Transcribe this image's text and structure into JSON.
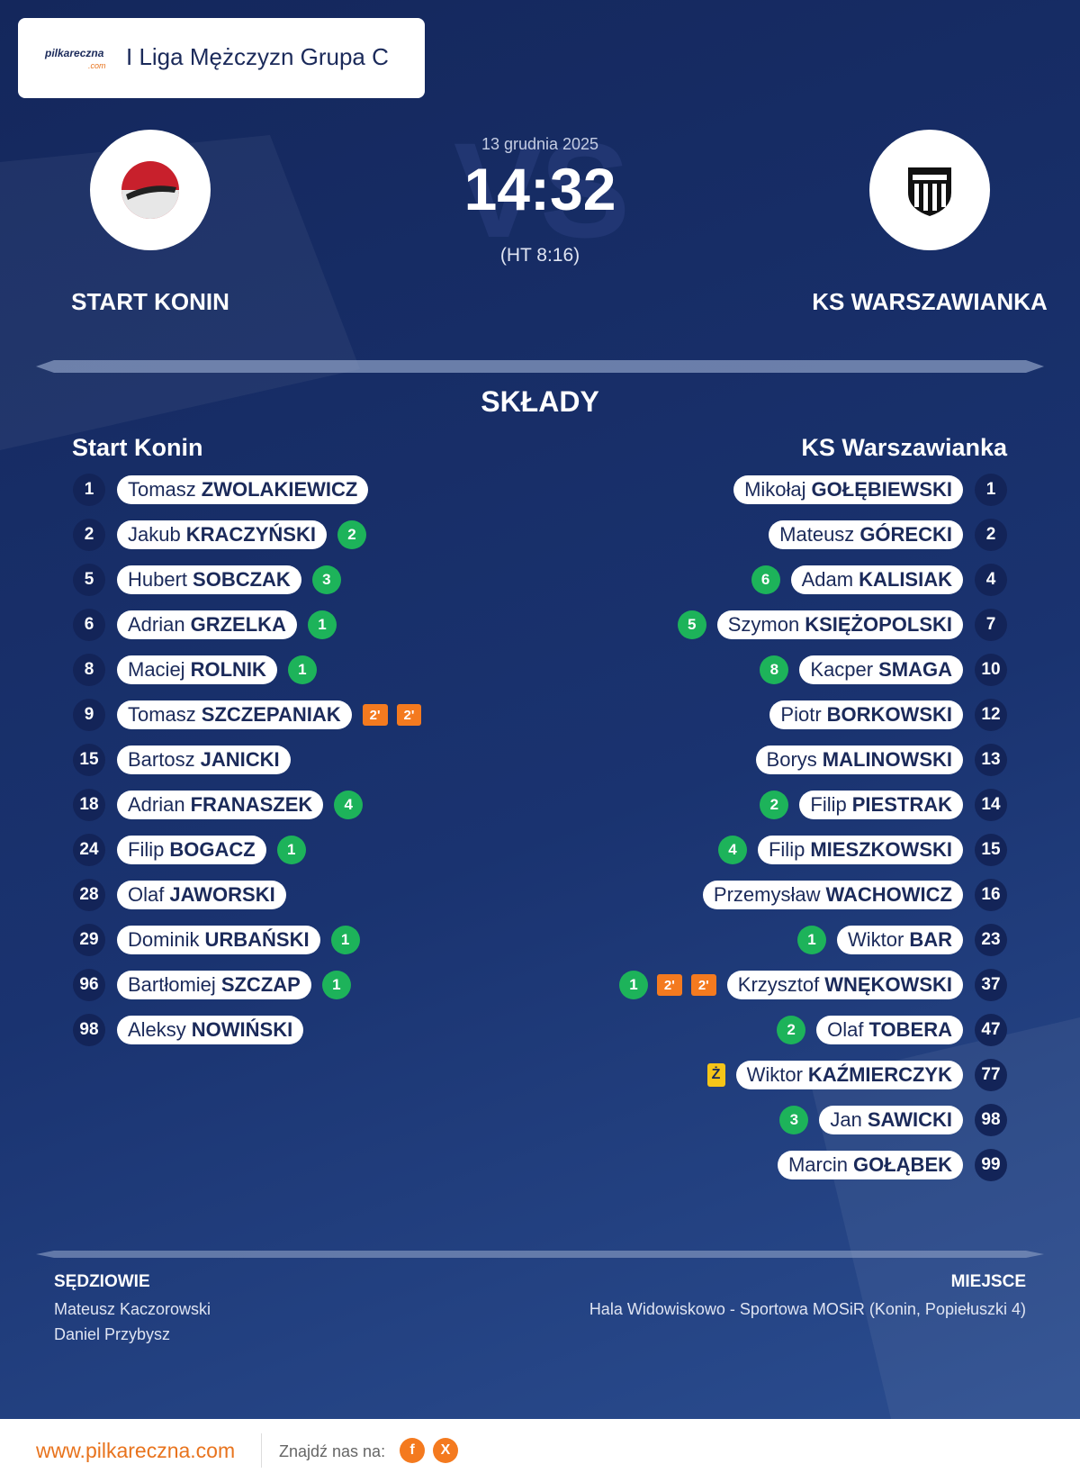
{
  "header": {
    "logo": "pilkareczna",
    "logo_suffix": ".com",
    "league": "I Liga Mężczyzn Grupa C"
  },
  "match": {
    "date": "13 grudnia 2025",
    "watermark": "VS",
    "score": "14:32",
    "halftime": "(HT 8:16)"
  },
  "teams": {
    "home": "START KONIN",
    "away": "KS WARSZAWIANKA"
  },
  "lineups": {
    "title": "SKŁADY",
    "home": {
      "name": "Start Konin",
      "players": [
        {
          "number": 1,
          "first": "Tomasz",
          "last": "ZWOLAKIEWICZ"
        },
        {
          "number": 2,
          "first": "Jakub",
          "last": "KRACZYŃSKI",
          "goals": 2
        },
        {
          "number": 5,
          "first": "Hubert",
          "last": "SOBCZAK",
          "goals": 3
        },
        {
          "number": 6,
          "first": "Adrian",
          "last": "GRZELKA",
          "goals": 1
        },
        {
          "number": 8,
          "first": "Maciej",
          "last": "ROLNIK",
          "goals": 1
        },
        {
          "number": 9,
          "first": "Tomasz",
          "last": "SZCZEPANIAK",
          "events": [
            "2'",
            "2'"
          ]
        },
        {
          "number": 15,
          "first": "Bartosz",
          "last": "JANICKI"
        },
        {
          "number": 18,
          "first": "Adrian",
          "last": "FRANASZEK",
          "goals": 4
        },
        {
          "number": 24,
          "first": "Filip",
          "last": "BOGACZ",
          "goals": 1
        },
        {
          "number": 28,
          "first": "Olaf",
          "last": "JAWORSKI"
        },
        {
          "number": 29,
          "first": "Dominik",
          "last": "URBAŃSKI",
          "goals": 1
        },
        {
          "number": 96,
          "first": "Bartłomiej",
          "last": "SZCZAP",
          "goals": 1
        },
        {
          "number": 98,
          "first": "Aleksy",
          "last": "NOWIŃSKI"
        }
      ]
    },
    "away": {
      "name": "KS Warszawianka",
      "players": [
        {
          "number": 1,
          "first": "Mikołaj",
          "last": "GOŁĘBIEWSKI"
        },
        {
          "number": 2,
          "first": "Mateusz",
          "last": "GÓRECKI"
        },
        {
          "number": 4,
          "first": "Adam",
          "last": "KALISIAK",
          "goals": 6
        },
        {
          "number": 7,
          "first": "Szymon",
          "last": "KSIĘŻOPOLSKI",
          "goals": 5
        },
        {
          "number": 10,
          "first": "Kacper",
          "last": "SMAGA",
          "goals": 8
        },
        {
          "number": 12,
          "first": "Piotr",
          "last": "BORKOWSKI"
        },
        {
          "number": 13,
          "first": "Borys",
          "last": "MALINOWSKI"
        },
        {
          "number": 14,
          "first": "Filip",
          "last": "PIESTRAK",
          "goals": 2
        },
        {
          "number": 15,
          "first": "Filip",
          "last": "MIESZKOWSKI",
          "goals": 4
        },
        {
          "number": 16,
          "first": "Przemysław",
          "last": "WACHOWICZ"
        },
        {
          "number": 23,
          "first": "Wiktor",
          "last": "BAR",
          "goals": 1
        },
        {
          "number": 37,
          "first": "Krzysztof",
          "last": "WNĘKOWSKI",
          "goals": 1,
          "events": [
            "2'",
            "2'"
          ]
        },
        {
          "number": 47,
          "first": "Olaf",
          "last": "TOBERA",
          "goals": 2
        },
        {
          "number": 77,
          "first": "Wiktor",
          "last": "KAŹMIERCZYK",
          "card": "Ż"
        },
        {
          "number": 98,
          "first": "Jan",
          "last": "SAWICKI",
          "goals": 3
        },
        {
          "number": 99,
          "first": "Marcin",
          "last": "GOŁĄBEK"
        }
      ]
    }
  },
  "officials": {
    "label": "SĘDZIOWIE",
    "names": [
      "Mateusz Kaczorowski",
      "Daniel Przybysz"
    ]
  },
  "venue": {
    "label": "MIEJSCE",
    "text": "Hala Widowiskowo - Sportowa MOSiR (Konin, Popiełuszki 4)"
  },
  "footer": {
    "website": "www.pilkareczna.com",
    "social_label": "Znajdź nas na:",
    "social": [
      "f",
      "X"
    ]
  }
}
